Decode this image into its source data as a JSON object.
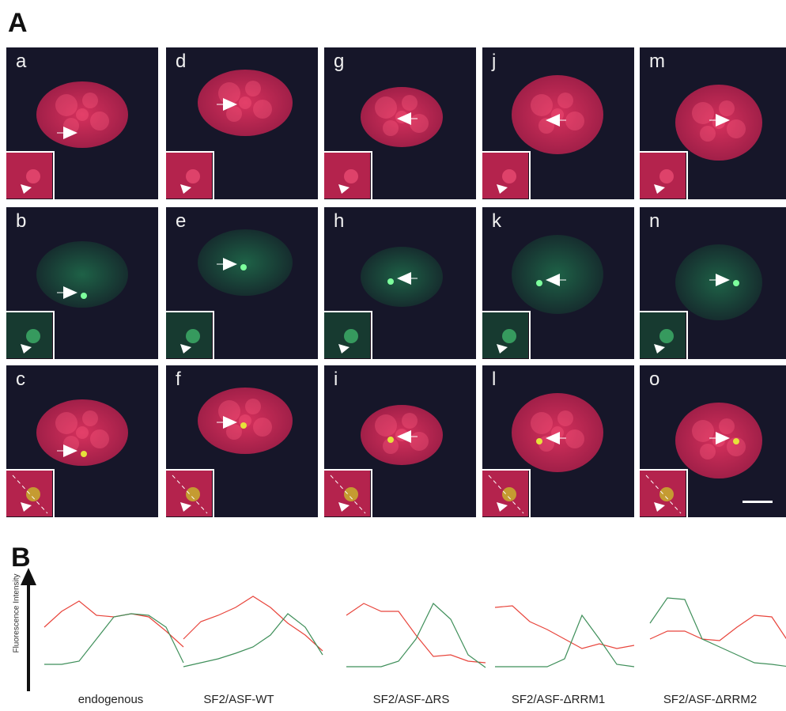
{
  "figure": {
    "section_a_label": "A",
    "section_b_label": "B",
    "y_axis_label": "Fluorescence Intensity",
    "panels": [
      {
        "letter": "a",
        "channel": "red"
      },
      {
        "letter": "d",
        "channel": "red"
      },
      {
        "letter": "g",
        "channel": "red"
      },
      {
        "letter": "j",
        "channel": "red"
      },
      {
        "letter": "m",
        "channel": "red"
      },
      {
        "letter": "b",
        "channel": "green"
      },
      {
        "letter": "e",
        "channel": "green"
      },
      {
        "letter": "h",
        "channel": "green"
      },
      {
        "letter": "k",
        "channel": "green"
      },
      {
        "letter": "n",
        "channel": "green"
      },
      {
        "letter": "c",
        "channel": "merge"
      },
      {
        "letter": "f",
        "channel": "merge"
      },
      {
        "letter": "i",
        "channel": "merge"
      },
      {
        "letter": "l",
        "channel": "merge"
      },
      {
        "letter": "o",
        "channel": "merge"
      }
    ],
    "trace_captions": [
      "endogenous",
      "SF2/ASF-WT",
      "SF2/ASF-ΔRS",
      "SF2/ASF-ΔRRM1",
      "SF2/ASF-ΔRRM2"
    ],
    "colors": {
      "red_trace": "#e8453c",
      "green_trace": "#3f8f5a",
      "panel_bg": "#161629"
    }
  }
}
